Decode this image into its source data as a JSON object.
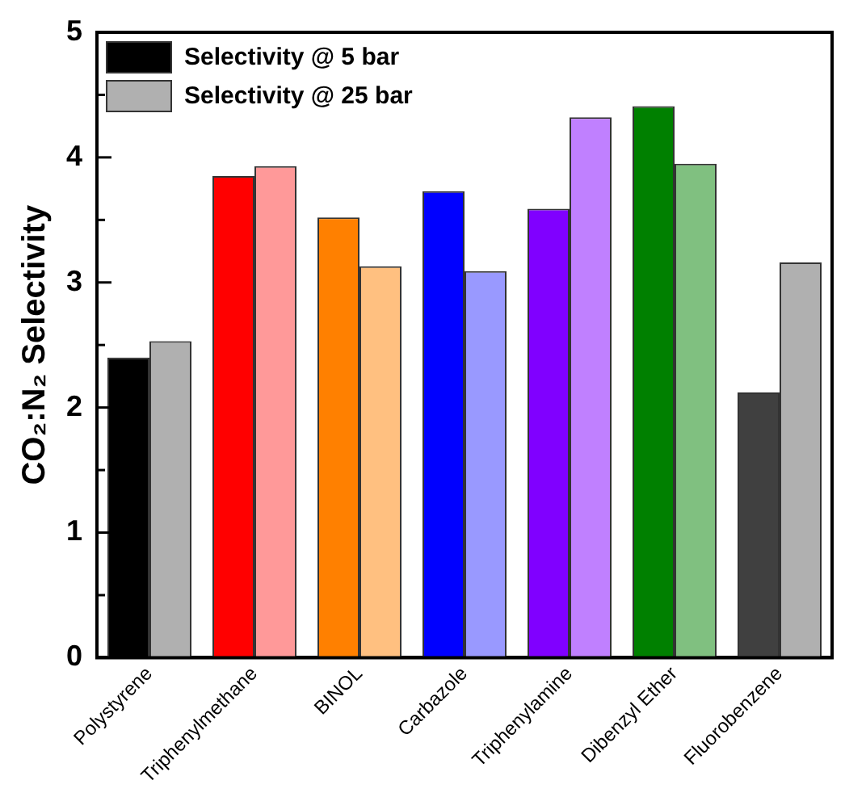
{
  "chart_data": {
    "type": "bar",
    "ylabel": "CO₂:N₂ Selectivity",
    "categories": [
      "Polystyrene",
      "Triphenylmethane",
      "BINOL",
      "Carbazole",
      "Triphenylamine",
      "Dibenzyl Ether",
      "Fluorobenzene"
    ],
    "series": [
      {
        "name": "Selectivity @ 5 bar",
        "color": "#000000",
        "colors": [
          "#000000",
          "#ff0000",
          "#ff8000",
          "#0000ff",
          "#8000ff",
          "#008000",
          "#404040"
        ],
        "values": [
          2.4,
          3.85,
          3.52,
          3.73,
          3.59,
          4.41,
          2.12
        ]
      },
      {
        "name": "Selectivity @ 25 bar",
        "color": "#b0b0b0",
        "colors": [
          "#b0b0b0",
          "#ff9999",
          "#ffc080",
          "#9999ff",
          "#c080ff",
          "#80c080",
          "#b0b0b0"
        ],
        "values": [
          2.53,
          3.93,
          3.13,
          3.09,
          4.32,
          3.95,
          3.16
        ]
      }
    ],
    "ylim": [
      0,
      5
    ],
    "yticks": [
      0,
      {
        "value": 0.5,
        "label": null
      },
      1,
      {
        "value": 1.5,
        "label": null
      },
      2,
      {
        "value": 2.5,
        "label": null
      },
      3,
      {
        "value": 3.5,
        "label": null
      },
      4,
      {
        "value": 4.5,
        "label": null
      },
      5
    ],
    "grid": false,
    "legend": "top left"
  }
}
